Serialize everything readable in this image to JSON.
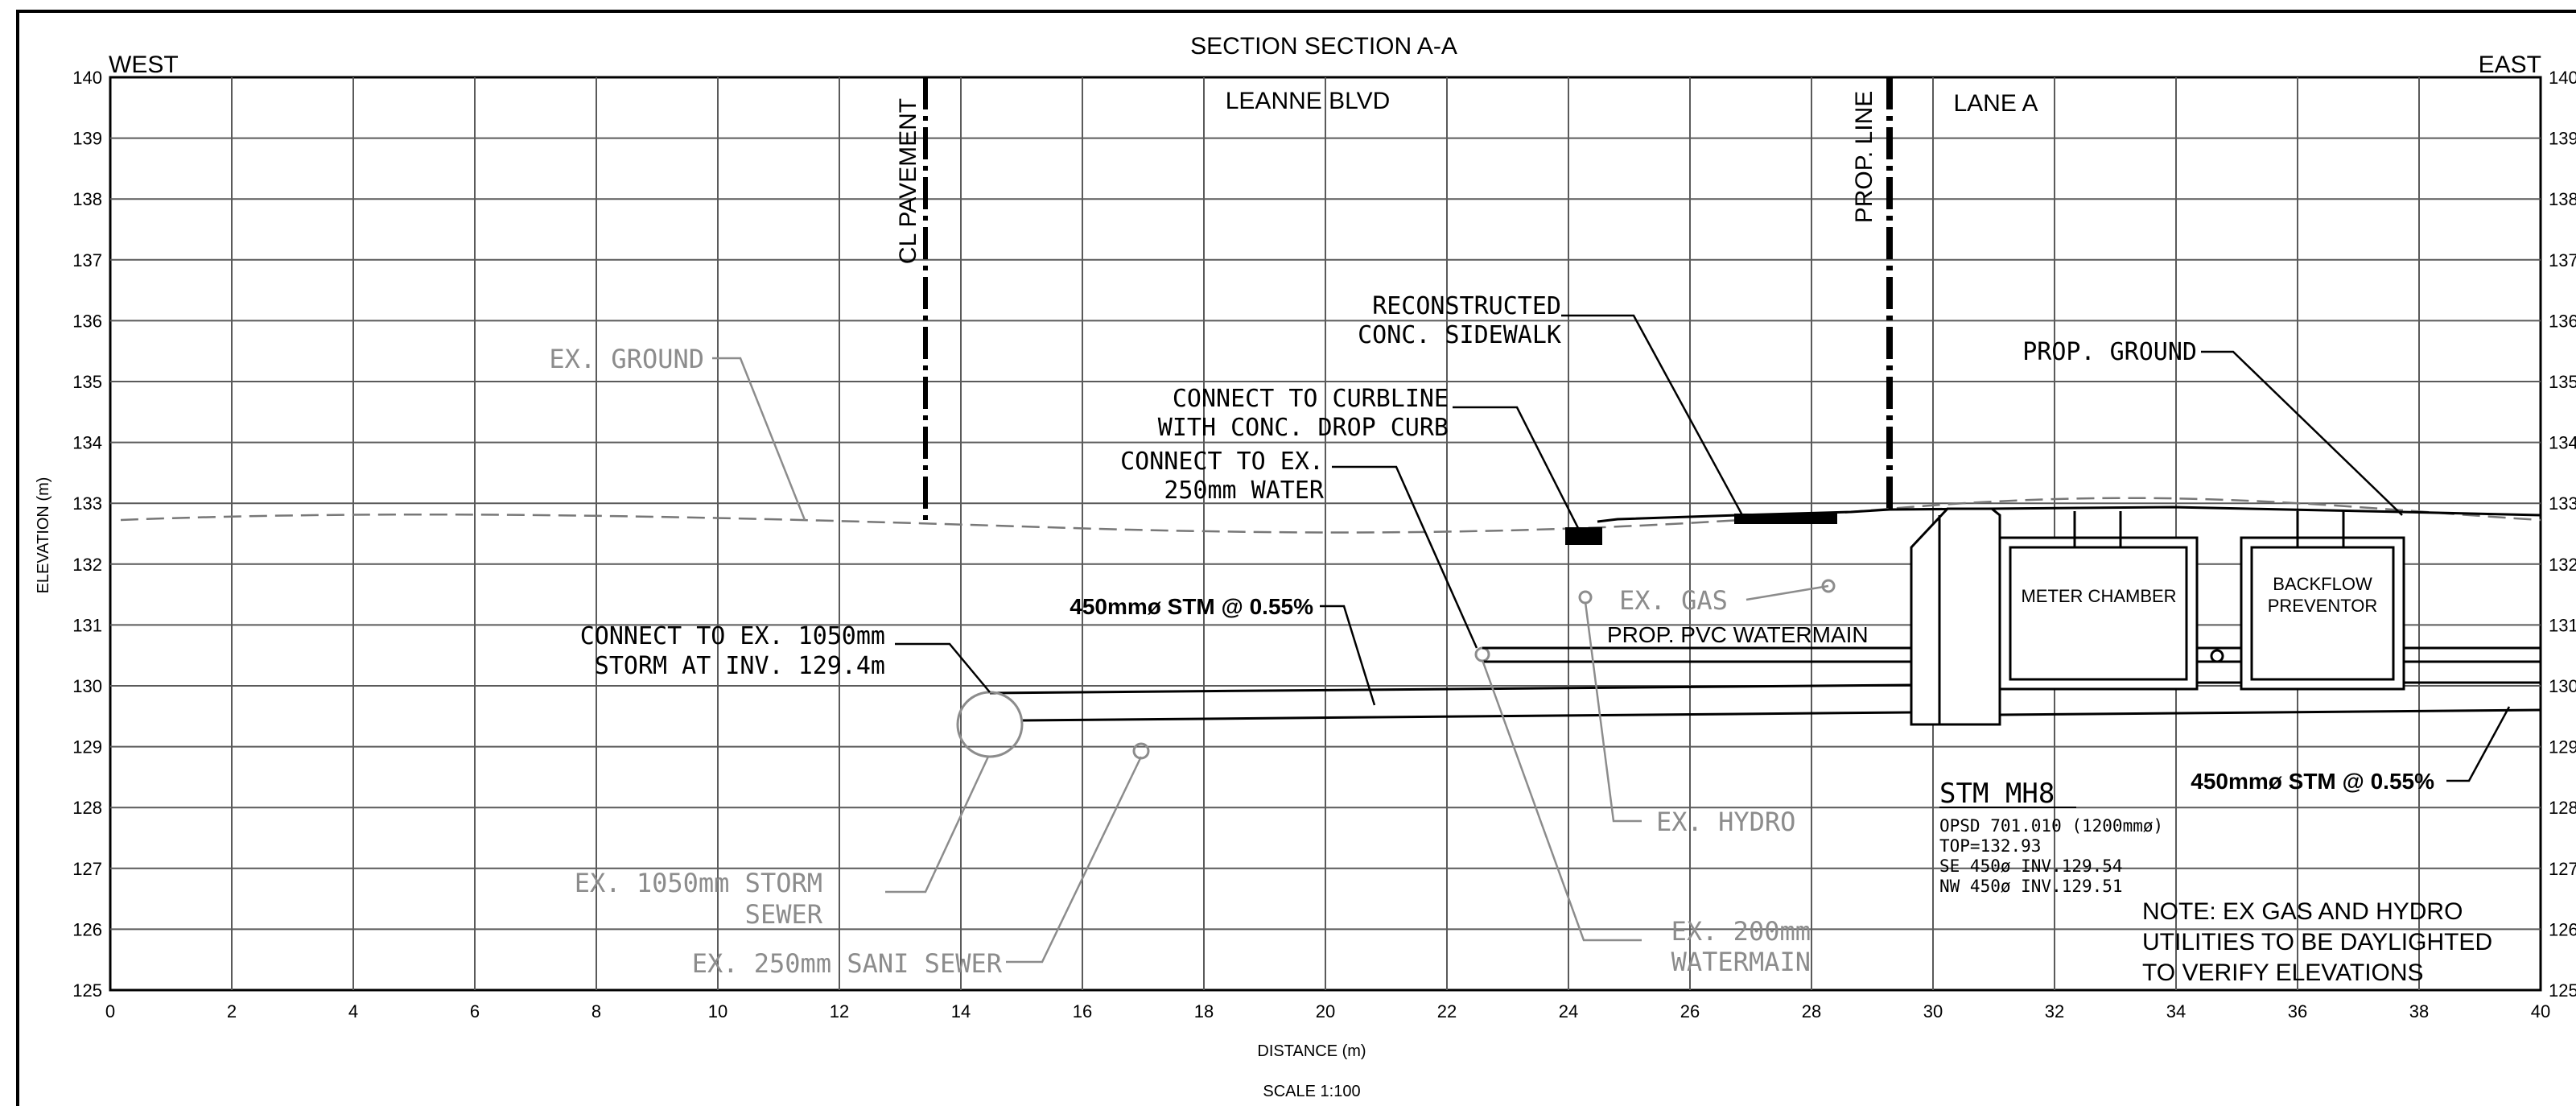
{
  "drawing": {
    "title": "SECTION SECTION A-A",
    "west_label": "WEST",
    "east_label": "EAST",
    "xlabel": "DISTANCE (m)",
    "ylabel": "ELEVATION (m)",
    "scale": "SCALE 1:100",
    "x_ticks": [
      "0",
      "2",
      "4",
      "6",
      "8",
      "10",
      "12",
      "14",
      "16",
      "18",
      "20",
      "22",
      "24",
      "26",
      "28",
      "30",
      "32",
      "34",
      "36",
      "38",
      "40"
    ],
    "y_ticks": [
      "125",
      "126",
      "127",
      "128",
      "129",
      "130",
      "131",
      "132",
      "133",
      "134",
      "135",
      "136",
      "137",
      "138",
      "139",
      "140"
    ],
    "xlim": [
      0,
      40
    ],
    "ylim": [
      125,
      140
    ],
    "grid": true,
    "reference_lines": {
      "cl_pavement": {
        "label": "CL PAVEMENT",
        "x": 13.5
      },
      "prop_line": {
        "label": "PROP. LINE",
        "x": 29.3
      }
    },
    "road_labels": {
      "leanne_blvd": "LEANNE BLVD",
      "lane_a": "LANE A"
    },
    "callouts": {
      "ex_ground": "EX. GROUND",
      "reconstructed_1": "RECONSTRUCTED",
      "reconstructed_2": "CONC. SIDEWALK",
      "curbline_1": "CONNECT TO CURBLINE",
      "curbline_2": "WITH CONC. DROP CURB",
      "water_1": "CONNECT TO EX.",
      "water_2": "250mm WATER",
      "prop_ground": "PROP. GROUND",
      "stm_slope_left": "450mmø STM @ 0.55%",
      "storm_1": "CONNECT TO EX. 1050mm",
      "storm_2": "STORM AT INV. 129.4m",
      "ex_gas": "EX. GAS",
      "prop_pvc": "PROP. PVC WATERMAIN",
      "meter_chamber": "METER CHAMBER",
      "backflow_1": "BACKFLOW",
      "backflow_2": "PREVENTOR",
      "stm_slope_right": "450mmø STM @ 0.55%",
      "ex_hydro": "EX. HYDRO",
      "ex_storm_1": "EX. 1050mm STORM",
      "ex_storm_2": "SEWER",
      "ex_sani": "EX. 250mm SANI SEWER",
      "ex_wm_1": "EX. 200mm",
      "ex_wm_2": "WATERMAIN"
    },
    "manhole": {
      "name": "STM MH8",
      "line1": "OPSD 701.010 (1200mmø)",
      "line2": "TOP=132.93",
      "line3": "SE 450ø INV.129.54",
      "line4": "NW 450ø INV.129.51"
    },
    "note": {
      "line1": "NOTE: EX GAS AND HYDRO",
      "line2": "UTILITIES TO BE DAYLIGHTED",
      "line3": "TO VERIFY ELEVATIONS"
    },
    "colors": {
      "ink": "#000000",
      "grid": "#5a5a5a",
      "existing": "#8c8c8c"
    }
  }
}
